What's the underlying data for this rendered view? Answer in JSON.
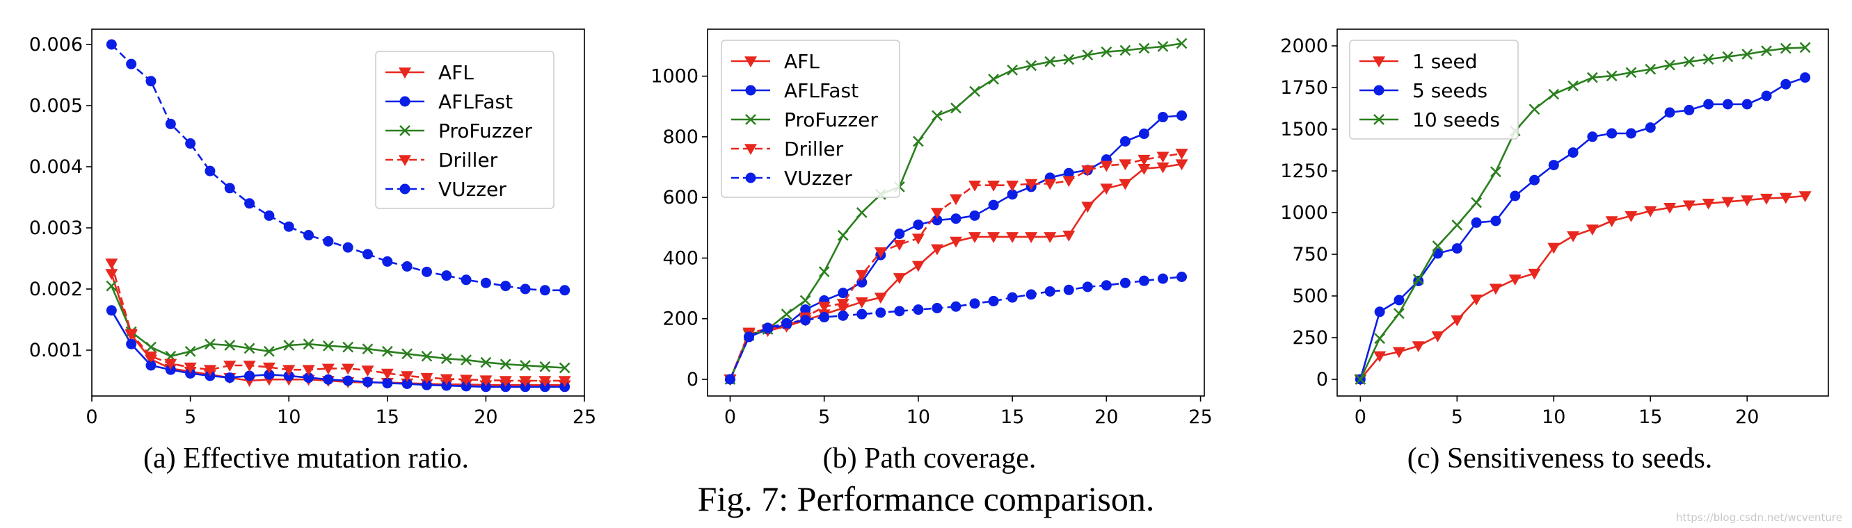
{
  "figure_caption": "Fig. 7: Performance comparison.",
  "watermark": "https://blog.csdn.net/wcventure",
  "colors": {
    "red": "#e8281e",
    "blue": "#0a1ee6",
    "green": "#2a7f1e"
  },
  "chart_data": [
    {
      "type": "line",
      "caption": "(a) Effective mutation ratio.",
      "xlim": [
        0,
        25
      ],
      "ylim": [
        0.00025,
        0.00625
      ],
      "xticks": [
        0,
        5,
        10,
        15,
        20,
        25
      ],
      "xtick_labels": [
        "0",
        "5",
        "10",
        "15",
        "20",
        "25"
      ],
      "yticks": [
        0.001,
        0.002,
        0.003,
        0.004,
        0.005,
        0.006
      ],
      "ytick_labels": [
        "0.001",
        "0.002",
        "0.003",
        "0.004",
        "0.005",
        "0.006"
      ],
      "legend_position": "top-right",
      "series": [
        {
          "name": "AFL",
          "color": "#e8281e",
          "marker": "triangle-down",
          "dash": "solid",
          "x": [
            1,
            2,
            3,
            4,
            5,
            6,
            7,
            8,
            9,
            10,
            11,
            12,
            13,
            14,
            15,
            16,
            17,
            18,
            19,
            20,
            21,
            22,
            23,
            24
          ],
          "y": [
            0.00225,
            0.00125,
            0.00085,
            0.0007,
            0.00065,
            0.0006,
            0.00055,
            0.0005,
            0.00052,
            0.00052,
            0.00052,
            0.0005,
            0.00048,
            0.00047,
            0.00047,
            0.00046,
            0.00045,
            0.00044,
            0.00044,
            0.00043,
            0.00043,
            0.00043,
            0.00043,
            0.00043
          ]
        },
        {
          "name": "AFLFast",
          "color": "#0a1ee6",
          "marker": "circle",
          "dash": "solid",
          "x": [
            1,
            2,
            3,
            4,
            5,
            6,
            7,
            8,
            9,
            10,
            11,
            12,
            13,
            14,
            15,
            16,
            17,
            18,
            19,
            20,
            21,
            22,
            23,
            24
          ],
          "y": [
            0.00165,
            0.0011,
            0.00075,
            0.00068,
            0.00062,
            0.00058,
            0.00055,
            0.00058,
            0.0006,
            0.00058,
            0.00055,
            0.00052,
            0.0005,
            0.00048,
            0.00046,
            0.00045,
            0.00043,
            0.00042,
            0.00041,
            0.0004,
            0.0004,
            0.0004,
            0.0004,
            0.0004
          ]
        },
        {
          "name": "ProFuzzer",
          "color": "#2a7f1e",
          "marker": "x",
          "dash": "solid",
          "x": [
            1,
            2,
            3,
            4,
            5,
            6,
            7,
            8,
            9,
            10,
            11,
            12,
            13,
            14,
            15,
            16,
            17,
            18,
            19,
            20,
            21,
            22,
            23,
            24
          ],
          "y": [
            0.00205,
            0.0013,
            0.00105,
            0.0009,
            0.00098,
            0.0011,
            0.00108,
            0.00103,
            0.00098,
            0.00108,
            0.0011,
            0.00107,
            0.00105,
            0.00102,
            0.00098,
            0.00094,
            0.0009,
            0.00086,
            0.00084,
            0.0008,
            0.00077,
            0.00075,
            0.00073,
            0.00071
          ]
        },
        {
          "name": "Driller",
          "color": "#e8281e",
          "marker": "triangle-down",
          "dash": "dashed",
          "x": [
            1,
            2,
            3,
            4,
            5,
            6,
            7,
            8,
            9,
            10,
            11,
            12,
            13,
            14,
            15,
            16,
            17,
            18,
            19,
            20,
            21,
            22,
            23,
            24
          ],
          "y": [
            0.00242,
            0.00127,
            0.0009,
            0.00078,
            0.00072,
            0.00068,
            0.00075,
            0.00075,
            0.00072,
            0.00068,
            0.00068,
            0.0007,
            0.0007,
            0.00067,
            0.00062,
            0.00058,
            0.00055,
            0.00053,
            0.00052,
            0.00051,
            0.0005,
            0.0005,
            0.0005,
            0.0005
          ]
        },
        {
          "name": "VUzzer",
          "color": "#0a1ee6",
          "marker": "circle",
          "dash": "dashed",
          "x": [
            1,
            2,
            3,
            4,
            5,
            6,
            7,
            8,
            9,
            10,
            11,
            12,
            13,
            14,
            15,
            16,
            17,
            18,
            19,
            20,
            21,
            22,
            23,
            24
          ],
          "y": [
            0.006,
            0.00568,
            0.0054,
            0.0047,
            0.00438,
            0.00393,
            0.00365,
            0.0034,
            0.0032,
            0.00302,
            0.00288,
            0.00278,
            0.00268,
            0.00257,
            0.00245,
            0.00237,
            0.00228,
            0.00222,
            0.00215,
            0.0021,
            0.00205,
            0.002,
            0.00198,
            0.00198
          ]
        }
      ]
    },
    {
      "type": "line",
      "caption": "(b) Path coverage.",
      "xlim": [
        -1.2,
        25.2
      ],
      "ylim": [
        -55,
        1155
      ],
      "xticks": [
        0,
        5,
        10,
        15,
        20,
        25
      ],
      "xtick_labels": [
        "0",
        "5",
        "10",
        "15",
        "20",
        "25"
      ],
      "yticks": [
        0,
        200,
        400,
        600,
        800,
        1000
      ],
      "ytick_labels": [
        "0",
        "200",
        "400",
        "600",
        "800",
        "1000"
      ],
      "legend_position": "top-left",
      "series": [
        {
          "name": "AFL",
          "color": "#e8281e",
          "marker": "triangle-down",
          "dash": "solid",
          "x": [
            0,
            1,
            2,
            3,
            4,
            5,
            6,
            7,
            8,
            9,
            10,
            11,
            12,
            13,
            14,
            15,
            16,
            17,
            18,
            19,
            20,
            21,
            22,
            23,
            24
          ],
          "y": [
            0,
            150,
            160,
            175,
            195,
            215,
            235,
            255,
            270,
            335,
            375,
            430,
            455,
            470,
            470,
            470,
            470,
            470,
            475,
            570,
            630,
            645,
            695,
            700,
            710
          ]
        },
        {
          "name": "AFLFast",
          "color": "#0a1ee6",
          "marker": "circle",
          "dash": "solid",
          "x": [
            0,
            1,
            2,
            3,
            4,
            5,
            6,
            7,
            8,
            9,
            10,
            11,
            12,
            13,
            14,
            15,
            16,
            17,
            18,
            19,
            20,
            21,
            22,
            23,
            24
          ],
          "y": [
            0,
            140,
            165,
            180,
            230,
            260,
            285,
            320,
            410,
            480,
            510,
            525,
            530,
            540,
            575,
            610,
            635,
            665,
            680,
            690,
            725,
            785,
            810,
            865,
            870
          ]
        },
        {
          "name": "ProFuzzer",
          "color": "#2a7f1e",
          "marker": "x",
          "dash": "solid",
          "x": [
            0,
            1,
            2,
            3,
            4,
            5,
            6,
            7,
            8,
            9,
            10,
            11,
            12,
            13,
            14,
            15,
            16,
            17,
            18,
            19,
            20,
            21,
            22,
            23,
            24
          ],
          "y": [
            0,
            145,
            165,
            215,
            260,
            355,
            475,
            550,
            610,
            635,
            785,
            870,
            895,
            950,
            990,
            1020,
            1035,
            1048,
            1055,
            1070,
            1080,
            1085,
            1092,
            1098,
            1108
          ]
        },
        {
          "name": "Driller",
          "color": "#e8281e",
          "marker": "triangle-down",
          "dash": "dashed",
          "x": [
            0,
            1,
            2,
            3,
            4,
            5,
            6,
            7,
            8,
            9,
            10,
            11,
            12,
            13,
            14,
            15,
            16,
            17,
            18,
            19,
            20,
            21,
            22,
            23,
            24
          ],
          "y": [
            0,
            155,
            165,
            175,
            205,
            240,
            250,
            345,
            420,
            445,
            465,
            550,
            595,
            640,
            640,
            640,
            645,
            645,
            655,
            690,
            705,
            710,
            725,
            735,
            745
          ]
        },
        {
          "name": "VUzzer",
          "color": "#0a1ee6",
          "marker": "circle",
          "dash": "dashed",
          "x": [
            0,
            1,
            2,
            3,
            4,
            5,
            6,
            7,
            8,
            9,
            10,
            11,
            12,
            13,
            14,
            15,
            16,
            17,
            18,
            19,
            20,
            21,
            22,
            23,
            24
          ],
          "y": [
            0,
            140,
            170,
            185,
            195,
            205,
            210,
            215,
            220,
            225,
            230,
            235,
            240,
            250,
            258,
            270,
            280,
            290,
            295,
            305,
            310,
            318,
            325,
            332,
            338
          ]
        }
      ]
    },
    {
      "type": "line",
      "caption": "(c) Sensitiveness to seeds.",
      "xlim": [
        -1.2,
        24.2
      ],
      "ylim": [
        -100,
        2100
      ],
      "xticks": [
        0,
        5,
        10,
        15,
        20
      ],
      "xtick_labels": [
        "0",
        "5",
        "10",
        "15",
        "20"
      ],
      "yticks": [
        0,
        250,
        500,
        750,
        1000,
        1250,
        1500,
        1750,
        2000
      ],
      "ytick_labels": [
        "0",
        "250",
        "500",
        "750",
        "1000",
        "1250",
        "1500",
        "1750",
        "2000"
      ],
      "legend_position": "top-left",
      "series": [
        {
          "name": "1 seed",
          "color": "#e8281e",
          "marker": "triangle-down",
          "dash": "solid",
          "x": [
            0,
            1,
            2,
            3,
            4,
            5,
            6,
            7,
            8,
            9,
            10,
            11,
            12,
            13,
            14,
            15,
            16,
            17,
            18,
            19,
            20,
            21,
            22,
            23
          ],
          "y": [
            0,
            140,
            165,
            200,
            260,
            355,
            480,
            545,
            600,
            635,
            790,
            860,
            900,
            950,
            980,
            1010,
            1030,
            1045,
            1055,
            1065,
            1075,
            1085,
            1090,
            1100
          ]
        },
        {
          "name": "5 seeds",
          "color": "#0a1ee6",
          "marker": "circle",
          "dash": "solid",
          "x": [
            0,
            1,
            2,
            3,
            4,
            5,
            6,
            7,
            8,
            9,
            10,
            11,
            12,
            13,
            14,
            15,
            16,
            17,
            18,
            19,
            20,
            21,
            22,
            23
          ],
          "y": [
            0,
            405,
            475,
            590,
            755,
            785,
            940,
            950,
            1100,
            1195,
            1285,
            1360,
            1455,
            1475,
            1475,
            1510,
            1600,
            1615,
            1650,
            1650,
            1650,
            1700,
            1770,
            1810
          ]
        },
        {
          "name": "10 seeds",
          "color": "#2a7f1e",
          "marker": "x",
          "dash": "solid",
          "x": [
            0,
            1,
            2,
            3,
            4,
            5,
            6,
            7,
            8,
            9,
            10,
            11,
            12,
            13,
            14,
            15,
            16,
            17,
            18,
            19,
            20,
            21,
            22,
            23
          ],
          "y": [
            0,
            245,
            395,
            600,
            800,
            925,
            1060,
            1245,
            1490,
            1620,
            1710,
            1760,
            1810,
            1820,
            1840,
            1860,
            1885,
            1905,
            1920,
            1935,
            1950,
            1970,
            1985,
            1990
          ]
        }
      ]
    }
  ]
}
